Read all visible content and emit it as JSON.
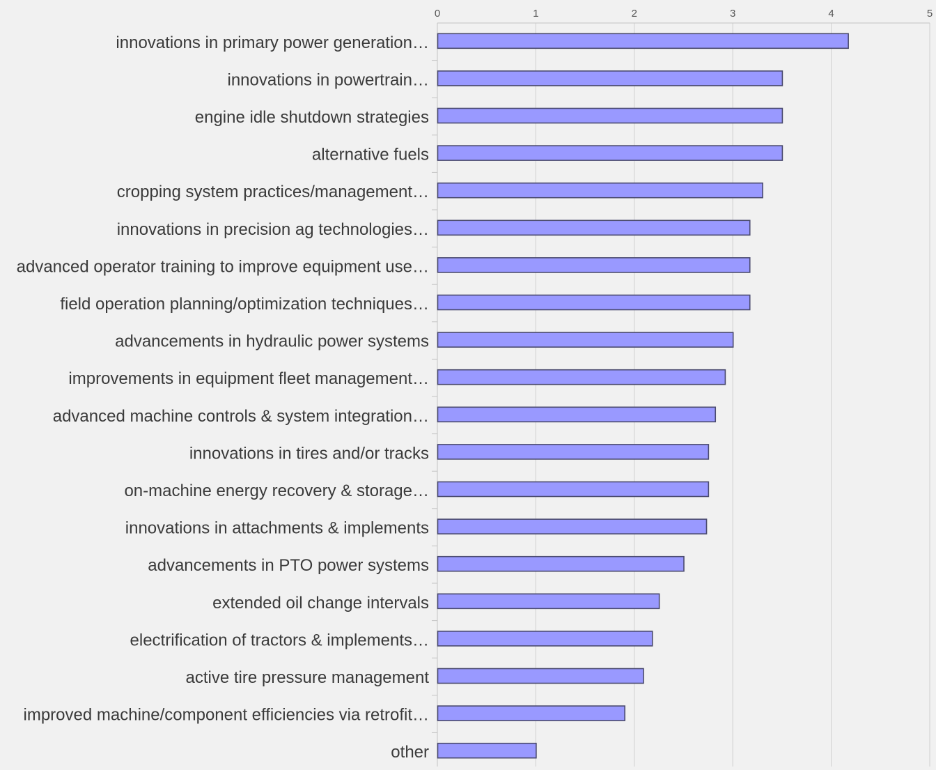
{
  "chart_data": {
    "type": "bar",
    "orientation": "horizontal",
    "title": "",
    "xlabel": "",
    "ylabel": "",
    "xlim": [
      0,
      5
    ],
    "ticks": [
      "0",
      "1",
      "2",
      "3",
      "4",
      "5"
    ],
    "tick_values": [
      0,
      1,
      2,
      3,
      4,
      5
    ],
    "axis_position": "top",
    "grid": true,
    "legend": "none",
    "bar_color": "#9999ff",
    "bar_edge_color": "#4a4a6e",
    "background_color": "#f1f1f1",
    "categories": [
      "innovations in primary power generation…",
      "innovations in powertrain…",
      "engine idle shutdown strategies",
      "alternative fuels",
      "cropping system practices/management…",
      "innovations in precision ag technologies…",
      "advanced operator training to improve equipment use…",
      "field operation planning/optimization techniques…",
      "advancements in hydraulic power systems",
      "improvements in equipment fleet management…",
      "advanced machine controls & system integration…",
      "innovations in tires and/or tracks",
      "on-machine energy recovery & storage…",
      "innovations in attachments & implements",
      "advancements in PTO power systems",
      "extended oil change intervals",
      "electrification of tractors & implements…",
      "active tire pressure management",
      "improved machine/component efficiencies via retrofit…",
      "other"
    ],
    "values": [
      4.17,
      3.5,
      3.5,
      3.5,
      3.3,
      3.17,
      3.17,
      3.17,
      3.0,
      2.92,
      2.82,
      2.75,
      2.75,
      2.73,
      2.5,
      2.25,
      2.18,
      2.09,
      1.9,
      1.0
    ]
  }
}
